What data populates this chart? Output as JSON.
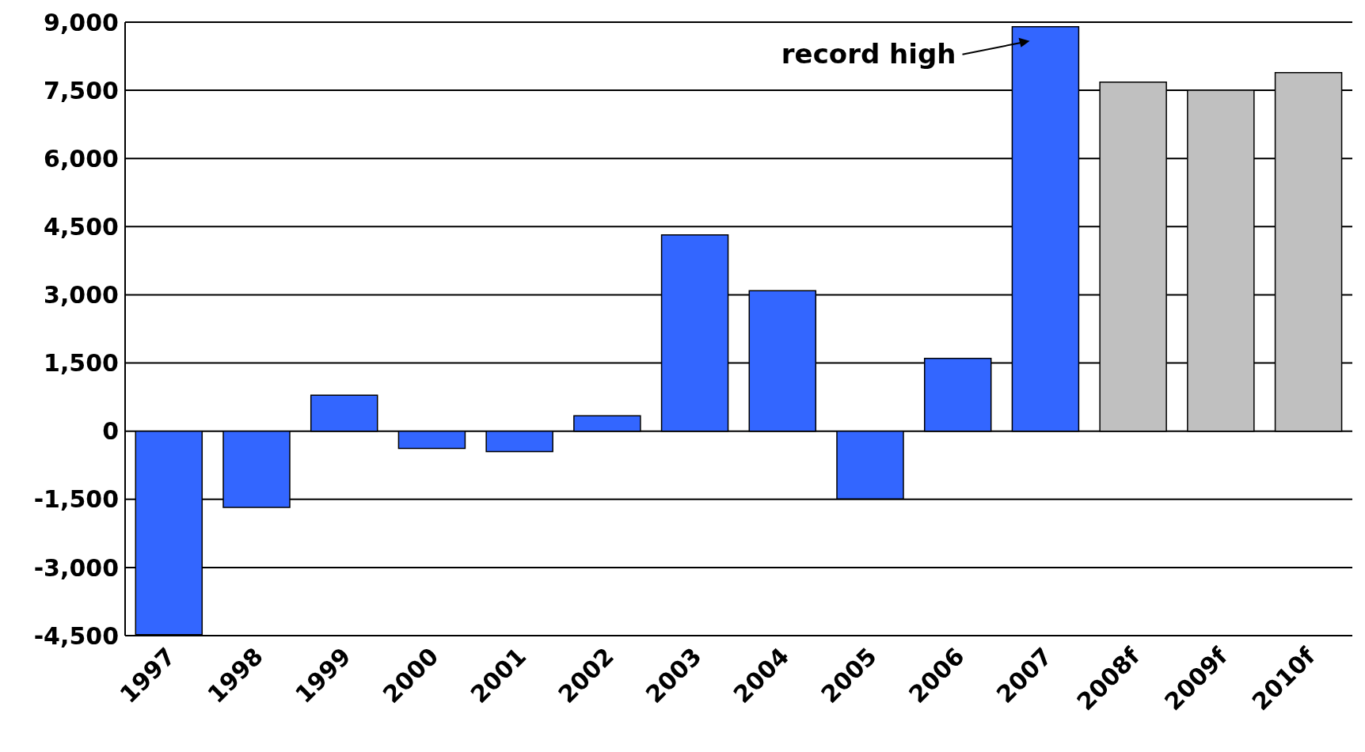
{
  "chart_data": {
    "type": "bar",
    "categories": [
      "1997",
      "1998",
      "1999",
      "2000",
      "2001",
      "2002",
      "2003",
      "2004",
      "2005",
      "2006",
      "2007",
      "2008f",
      "2009f",
      "2010f"
    ],
    "values": [
      -4480,
      -1680,
      790,
      -380,
      -450,
      340,
      4320,
      3090,
      -1490,
      1600,
      8900,
      7680,
      7500,
      7890
    ],
    "colors": [
      "#3366ff",
      "#3366ff",
      "#3366ff",
      "#3366ff",
      "#3366ff",
      "#3366ff",
      "#3366ff",
      "#3366ff",
      "#3366ff",
      "#3366ff",
      "#3366ff",
      "#c0c0c0",
      "#c0c0c0",
      "#c0c0c0"
    ],
    "ylim": [
      -4500,
      9000
    ],
    "yticks": [
      {
        "value": -4500,
        "label": "-4,500"
      },
      {
        "value": -3000,
        "label": "-3,000"
      },
      {
        "value": -1500,
        "label": "-1,500"
      },
      0,
      {
        "value": 1500,
        "label": "1,500"
      },
      {
        "value": 3000,
        "label": "3,000"
      },
      {
        "value": 4500,
        "label": "4,500"
      },
      {
        "value": 6000,
        "label": "6,000"
      },
      {
        "value": 7500,
        "label": "7,500"
      },
      {
        "value": 9000,
        "label": "9,000"
      }
    ],
    "grid": "y",
    "annotations": [
      {
        "text": "record high",
        "x": "2007",
        "y": 8900
      }
    ]
  }
}
